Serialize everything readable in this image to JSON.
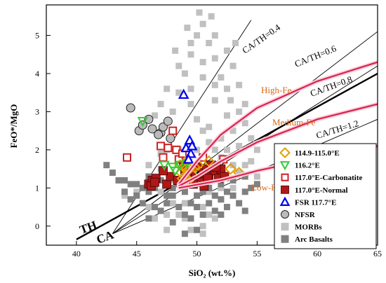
{
  "chart_data": {
    "type": "scatter",
    "xlabel": "SiO₂ (wt.%)",
    "ylabel": "FeO*/MgO",
    "xlim": [
      37.5,
      65
    ],
    "ylim": [
      -0.5,
      5.8
    ],
    "x_ticks": [
      "40",
      "45",
      "50",
      "55",
      "60",
      "65"
    ],
    "y_ticks": [
      "0",
      "1",
      "2",
      "3",
      "4",
      "5"
    ],
    "legend_position": "bottom-right",
    "annotations": {
      "ca_th_04": "CA/TH=0.4",
      "ca_th_06": "CA/TH=0.6",
      "ca_th_08": "CA/TH=0.8",
      "ca_th_12": "CA/TH=1.2",
      "high_fe": "High-Fe",
      "medium_fe": "Medium-Fe",
      "low_fe": "Low-Fe",
      "th": "TH",
      "ca": "CA"
    },
    "reference_lines": [
      {
        "name": "TH/CA boundary",
        "x": [
          40,
          65
        ],
        "y": [
          -0.35,
          4.0
        ]
      },
      {
        "name": "CA/TH=0.4",
        "x": [
          43,
          54.5
        ],
        "y": [
          -0.2,
          5.4
        ]
      },
      {
        "name": "CA/TH=0.6",
        "x": [
          43,
          65
        ],
        "y": [
          -0.2,
          5.1
        ]
      },
      {
        "name": "CA/TH=0.8",
        "x": [
          43,
          65
        ],
        "y": [
          -0.2,
          4.2
        ]
      },
      {
        "name": "CA/TH=1.2",
        "x": [
          43,
          65
        ],
        "y": [
          -0.2,
          2.8
        ]
      }
    ],
    "curves": [
      {
        "name": "High-Fe",
        "x": [
          48.5,
          50,
          52,
          55,
          60,
          65
        ],
        "y": [
          1.1,
          1.7,
          2.4,
          3.1,
          3.8,
          4.3
        ]
      },
      {
        "name": "Medium-Fe",
        "x": [
          48.5,
          50,
          52,
          55,
          60,
          65
        ],
        "y": [
          1.05,
          1.3,
          1.7,
          2.2,
          2.8,
          3.2
        ]
      },
      {
        "name": "Low-Fe",
        "x": [
          48.5,
          52,
          55,
          60,
          65
        ],
        "y": [
          1.0,
          1.2,
          1.45,
          1.8,
          2.1
        ]
      }
    ],
    "series": [
      {
        "name": "114.9-115.0°E",
        "marker": "diamond-open",
        "color": "#e0a000",
        "points": [
          [
            48.7,
            1.4
          ],
          [
            48.9,
            1.55
          ],
          [
            49.1,
            1.7
          ],
          [
            49.2,
            1.45
          ],
          [
            49.0,
            1.3
          ],
          [
            48.8,
            1.25
          ],
          [
            49.4,
            1.5
          ],
          [
            49.6,
            1.35
          ],
          [
            49.3,
            1.2
          ],
          [
            50.1,
            1.6
          ],
          [
            52.8,
            1.5
          ],
          [
            53.5,
            1.4
          ],
          [
            48.6,
            1.6
          ],
          [
            49.8,
            1.55
          ],
          [
            51.0,
            1.7
          ]
        ]
      },
      {
        "name": "116.2°E",
        "marker": "triangle-down-open",
        "color": "#33cc33",
        "points": [
          [
            45.5,
            2.75
          ],
          [
            47.3,
            1.6
          ],
          [
            48.0,
            1.55
          ],
          [
            48.6,
            1.6
          ],
          [
            48.2,
            1.45
          ],
          [
            49.2,
            1.65
          ]
        ]
      },
      {
        "name": "117.0°E-Carbonatite",
        "marker": "square-open",
        "color": "#cc2222",
        "points": [
          [
            44.2,
            1.8
          ],
          [
            47.0,
            2.1
          ],
          [
            47.2,
            1.8
          ],
          [
            48.0,
            2.5
          ],
          [
            48.3,
            2.0
          ],
          [
            48.5,
            1.75
          ],
          [
            50.5,
            1.8
          ],
          [
            52.2,
            1.75
          ],
          [
            47.6,
            2.05
          ],
          [
            48.8,
            1.9
          ]
        ]
      },
      {
        "name": "117.0°E-Normal",
        "marker": "square-filled",
        "color": "#b01818",
        "points": [
          [
            46.0,
            1.1
          ],
          [
            46.3,
            1.2
          ],
          [
            46.6,
            1.25
          ],
          [
            46.2,
            1.05
          ],
          [
            47.5,
            1.1
          ],
          [
            47.8,
            1.3
          ],
          [
            48.4,
            1.2
          ],
          [
            49.0,
            1.45
          ],
          [
            49.5,
            1.35
          ],
          [
            50.0,
            1.55
          ],
          [
            50.2,
            1.2
          ],
          [
            50.5,
            1.4
          ],
          [
            50.8,
            1.5
          ],
          [
            51.0,
            1.3
          ],
          [
            51.2,
            1.6
          ],
          [
            51.5,
            1.45
          ],
          [
            51.8,
            1.25
          ],
          [
            52.0,
            1.5
          ],
          [
            52.3,
            1.3
          ],
          [
            50.3,
            1.15
          ],
          [
            49.7,
            1.1
          ],
          [
            47.2,
            1.45
          ],
          [
            48.9,
            1.6
          ],
          [
            50.9,
            1.25
          ],
          [
            51.6,
            1.55
          ],
          [
            46.5,
            1.15
          ],
          [
            49.2,
            1.25
          ],
          [
            50.6,
            1.05
          ]
        ]
      },
      {
        "name": "FSR 117.7°E",
        "marker": "triangle-up-open",
        "color": "#0000ee",
        "points": [
          [
            48.9,
            3.45
          ],
          [
            49.1,
            2.05
          ],
          [
            49.4,
            2.25
          ],
          [
            49.5,
            1.9
          ],
          [
            49.6,
            2.1
          ],
          [
            49.3,
            1.75
          ]
        ]
      },
      {
        "name": "NFSR",
        "marker": "circle",
        "color": "#555555",
        "points": [
          [
            44.5,
            3.1
          ],
          [
            45.2,
            2.5
          ],
          [
            45.5,
            2.65
          ],
          [
            46.0,
            2.8
          ],
          [
            46.3,
            2.55
          ],
          [
            47.0,
            2.45
          ],
          [
            47.2,
            2.6
          ],
          [
            47.6,
            2.75
          ],
          [
            47.8,
            2.3
          ],
          [
            46.8,
            2.4
          ]
        ]
      },
      {
        "name": "MORBs",
        "marker": "square-filled",
        "color": "#c0c0c0",
        "points": [
          [
            46,
            1.0
          ],
          [
            46.5,
            1.3
          ],
          [
            47,
            1.5
          ],
          [
            47.5,
            2.0
          ],
          [
            48,
            2.5
          ],
          [
            48,
            3.0
          ],
          [
            48.5,
            3.5
          ],
          [
            49,
            4.0
          ],
          [
            49.5,
            4.5
          ],
          [
            50,
            5.0
          ],
          [
            50.5,
            5.3
          ],
          [
            51,
            4.8
          ],
          [
            51.5,
            4.4
          ],
          [
            52,
            3.9
          ],
          [
            52.5,
            3.6
          ],
          [
            53,
            4.2
          ],
          [
            53.5,
            3.0
          ],
          [
            54,
            2.7
          ],
          [
            54.5,
            2.3
          ],
          [
            55,
            2.0
          ],
          [
            49.5,
            3.2
          ],
          [
            50,
            2.8
          ],
          [
            50.5,
            2.5
          ],
          [
            51,
            2.2
          ],
          [
            51.5,
            2.0
          ],
          [
            52,
            1.8
          ],
          [
            48.5,
            2.0
          ],
          [
            49,
            1.8
          ],
          [
            50,
            1.6
          ],
          [
            51,
            1.5
          ],
          [
            52,
            1.4
          ],
          [
            53,
            1.6
          ],
          [
            53.5,
            1.4
          ],
          [
            54,
            1.6
          ],
          [
            50,
            0.8
          ],
          [
            50.5,
            0.5
          ],
          [
            51,
            0.3
          ],
          [
            51.5,
            0.2
          ],
          [
            50.5,
            0.0
          ],
          [
            49,
            0.2
          ],
          [
            48,
            0.6
          ],
          [
            47,
            0.9
          ],
          [
            46,
            0.5
          ],
          [
            47.5,
            0.3
          ],
          [
            45,
            0.9
          ],
          [
            44,
            0.8
          ],
          [
            52,
            1.0
          ],
          [
            53,
            1.0
          ],
          [
            49.5,
            3.6
          ],
          [
            50.5,
            3.9
          ],
          [
            51.5,
            3.3
          ],
          [
            52.5,
            2.9
          ],
          [
            48.5,
            4.2
          ],
          [
            49.5,
            4.8
          ],
          [
            50.5,
            4.3
          ],
          [
            51.5,
            5.0
          ],
          [
            52.5,
            4.6
          ],
          [
            47.5,
            3.6
          ],
          [
            47,
            3.2
          ],
          [
            46.5,
            2.9
          ],
          [
            50,
            2.0
          ],
          [
            51,
            2.6
          ],
          [
            52,
            2.3
          ],
          [
            53,
            2.5
          ],
          [
            54,
            3.2
          ],
          [
            53.5,
            3.7
          ],
          [
            50.2,
            5.6
          ],
          [
            51.2,
            5.5
          ],
          [
            48,
            1.2
          ],
          [
            49,
            1.0
          ],
          [
            47,
            1.9
          ],
          [
            46,
            1.6
          ],
          [
            52.5,
            2.0
          ],
          [
            53.5,
            2.1
          ],
          [
            54.5,
            1.7
          ],
          [
            55,
            1.3
          ],
          [
            51,
            0.9
          ],
          [
            52,
            0.7
          ],
          [
            49,
            0.6
          ],
          [
            48.5,
            0.3
          ],
          [
            49.5,
            -0.1
          ],
          [
            50.5,
            -0.2
          ],
          [
            47.5,
            -0.1
          ],
          [
            46.5,
            0.2
          ],
          [
            51.5,
            3.7
          ],
          [
            52.8,
            3.3
          ],
          [
            48.2,
            4.6
          ],
          [
            49.2,
            5.2
          ],
          [
            53.2,
            4.8
          ]
        ]
      },
      {
        "name": "Arc Basalts",
        "marker": "square-filled",
        "color": "#808080",
        "points": [
          [
            44,
            0.9
          ],
          [
            44.5,
            0.7
          ],
          [
            45,
            0.8
          ],
          [
            45.5,
            0.6
          ],
          [
            46,
            0.9
          ],
          [
            46.5,
            0.5
          ],
          [
            47,
            0.4
          ],
          [
            47.5,
            0.6
          ],
          [
            48,
            0.8
          ],
          [
            48.5,
            0.5
          ],
          [
            49,
            0.3
          ],
          [
            49.5,
            0.2
          ],
          [
            50,
            0.5
          ],
          [
            50.5,
            0.3
          ],
          [
            51,
            0.6
          ],
          [
            51.5,
            0.4
          ],
          [
            52,
            0.7
          ],
          [
            52.5,
            0.5
          ],
          [
            53,
            0.8
          ],
          [
            53.5,
            0.6
          ],
          [
            54,
            0.9
          ],
          [
            54.5,
            1.0
          ],
          [
            42.5,
            1.6
          ],
          [
            43,
            1.4
          ],
          [
            44,
            1.2
          ],
          [
            45,
            1.1
          ],
          [
            46,
            1.3
          ],
          [
            47,
            1.2
          ],
          [
            48,
            1.0
          ],
          [
            49,
            0.9
          ],
          [
            50,
            0.8
          ],
          [
            51,
            1.0
          ],
          [
            52,
            1.1
          ],
          [
            53,
            1.2
          ],
          [
            54,
            1.3
          ],
          [
            55,
            1.1
          ],
          [
            49.5,
            0.6
          ],
          [
            50.5,
            0.9
          ],
          [
            51.5,
            0.8
          ],
          [
            52.5,
            0.9
          ],
          [
            48.5,
            1.1
          ],
          [
            47.5,
            0.8
          ],
          [
            46.5,
            1.0
          ],
          [
            45.5,
            1.0
          ],
          [
            44.5,
            1.1
          ],
          [
            43.5,
            1.2
          ],
          [
            50,
            -0.1
          ],
          [
            48,
            0.1
          ],
          [
            52,
            0.3
          ],
          [
            54,
            0.4
          ],
          [
            46,
            0.2
          ],
          [
            49,
            -0.2
          ]
        ]
      }
    ]
  }
}
